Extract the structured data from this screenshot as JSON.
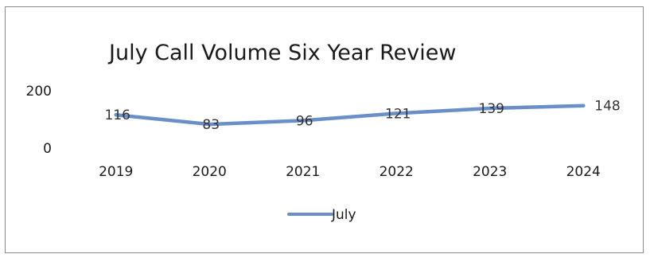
{
  "chart_data": {
    "type": "line",
    "title": "July Call Volume Six Year Review",
    "categories": [
      "2019",
      "2020",
      "2021",
      "2022",
      "2023",
      "2024"
    ],
    "series": [
      {
        "name": "July",
        "values": [
          116,
          83,
          96,
          121,
          139,
          148
        ],
        "color": "#6a8fc8"
      }
    ],
    "y_ticks": [
      0,
      200
    ],
    "ylim": [
      0,
      200
    ],
    "grid": false,
    "legend": "bottom",
    "data_labels": true
  }
}
